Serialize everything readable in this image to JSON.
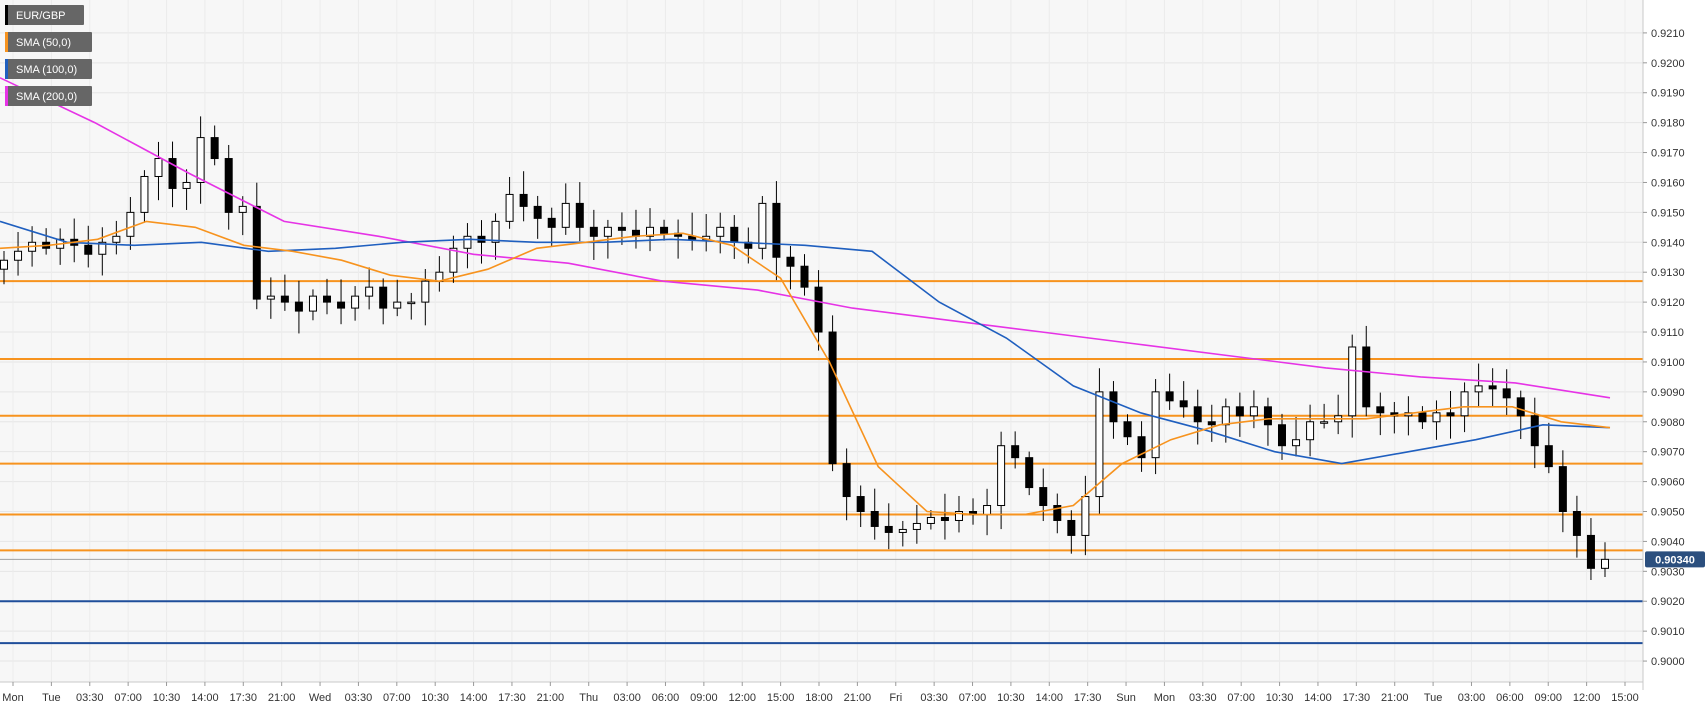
{
  "chart_data": {
    "type": "line",
    "instrument": "EUR/GBP",
    "legend": [
      {
        "label": "EUR/GBP",
        "color": "#000000"
      },
      {
        "label": "SMA (50,0)",
        "color": "#f7931e"
      },
      {
        "label": "SMA (100,0)",
        "color": "#1f5fbf"
      },
      {
        "label": "SMA (200,0)",
        "color": "#e633e6"
      }
    ],
    "legend_position": "top-left",
    "grid": true,
    "ylim": [
      0.8993,
      0.9221
    ],
    "y_ticks": [
      "0.9000",
      "0.9010",
      "0.9020",
      "0.9030",
      "0.9040",
      "0.9050",
      "0.9060",
      "0.9070",
      "0.9080",
      "0.9090",
      "0.9100",
      "0.9110",
      "0.9120",
      "0.9130",
      "0.9140",
      "0.9150",
      "0.9160",
      "0.9170",
      "0.9180",
      "0.9190",
      "0.9200",
      "0.9210"
    ],
    "x_ticks": [
      "Mon",
      "Tue",
      "03:30",
      "07:00",
      "10:30",
      "14:00",
      "17:30",
      "21:00",
      "Wed",
      "03:30",
      "07:00",
      "10:30",
      "14:00",
      "17:30",
      "21:00",
      "Thu",
      "03:00",
      "06:00",
      "09:00",
      "12:00",
      "15:00",
      "18:00",
      "21:00",
      "Fri",
      "03:30",
      "07:00",
      "10:30",
      "14:00",
      "17:30",
      "Sun",
      "Mon",
      "03:30",
      "07:00",
      "10:30",
      "14:00",
      "17:30",
      "21:00",
      "Tue",
      "03:00",
      "06:00",
      "09:00",
      "12:00",
      "15:00"
    ],
    "price_label": "0.90340",
    "last_price": 0.9034,
    "resistance_levels": [
      0.9127,
      0.9101,
      0.9082,
      0.9066,
      0.9049,
      0.9037
    ],
    "support_levels": [
      0.902,
      0.9006
    ],
    "price_series": [
      0.9134,
      0.9137,
      0.914,
      0.9138,
      0.9141,
      0.9139,
      0.9136,
      0.914,
      0.9142,
      0.915,
      0.9162,
      0.9168,
      0.9158,
      0.916,
      0.9175,
      0.9168,
      0.915,
      0.9152,
      0.9121,
      0.9122,
      0.912,
      0.9117,
      0.9122,
      0.912,
      0.9118,
      0.9122,
      0.9125,
      0.9118,
      0.912,
      0.912,
      0.9127,
      0.913,
      0.9138,
      0.9142,
      0.914,
      0.9147,
      0.9156,
      0.9152,
      0.9148,
      0.9145,
      0.9153,
      0.9145,
      0.9142,
      0.9145,
      0.9144,
      0.9142,
      0.9145,
      0.9143,
      0.9142,
      0.9141,
      0.9142,
      0.9145,
      0.914,
      0.9138,
      0.9153,
      0.9135,
      0.9132,
      0.9125,
      0.911,
      0.9066,
      0.9055,
      0.905,
      0.9045,
      0.9043,
      0.9044,
      0.9046,
      0.9048,
      0.9047,
      0.905,
      0.9049,
      0.9052,
      0.9072,
      0.9068,
      0.9058,
      0.9052,
      0.9047,
      0.9042,
      0.9055,
      0.909,
      0.908,
      0.9075,
      0.9068,
      0.909,
      0.9087,
      0.9085,
      0.908,
      0.9079,
      0.9085,
      0.9082,
      0.9085,
      0.9079,
      0.9072,
      0.9074,
      0.908,
      0.908,
      0.9082,
      0.9105,
      0.9085,
      0.9083,
      0.9082,
      0.9083,
      0.908,
      0.9083,
      0.9082,
      0.909,
      0.9092,
      0.9091,
      0.9088,
      0.9082,
      0.9072,
      0.9065,
      0.905,
      0.9042,
      0.9031,
      0.9034
    ],
    "sma50": [
      0.9138,
      0.9139,
      0.9141,
      0.9147,
      0.9145,
      0.9139,
      0.9137,
      0.9134,
      0.9129,
      0.9127,
      0.9131,
      0.9138,
      0.914,
      0.9142,
      0.9143,
      0.9139,
      0.9128,
      0.91,
      0.9065,
      0.905,
      0.9049,
      0.9049,
      0.9052,
      0.9066,
      0.9074,
      0.9079,
      0.9081,
      0.9081,
      0.9081,
      0.9083,
      0.9085,
      0.9085,
      0.908,
      0.9078
    ],
    "sma100": [
      0.9147,
      0.914,
      0.9139,
      0.914,
      0.9137,
      0.9138,
      0.914,
      0.9141,
      0.914,
      0.914,
      0.9141,
      0.914,
      0.9139,
      0.9137,
      0.912,
      0.9108,
      0.9092,
      0.9083,
      0.9077,
      0.907,
      0.9066,
      0.907,
      0.9074,
      0.9079,
      0.9078
    ],
    "sma200": [
      0.9195,
      0.918,
      0.9163,
      0.9147,
      0.9142,
      0.9136,
      0.9133,
      0.9127,
      0.9124,
      0.9118,
      0.9114,
      0.911,
      0.9106,
      0.9102,
      0.9098,
      0.9095,
      0.9093,
      0.9088
    ]
  }
}
